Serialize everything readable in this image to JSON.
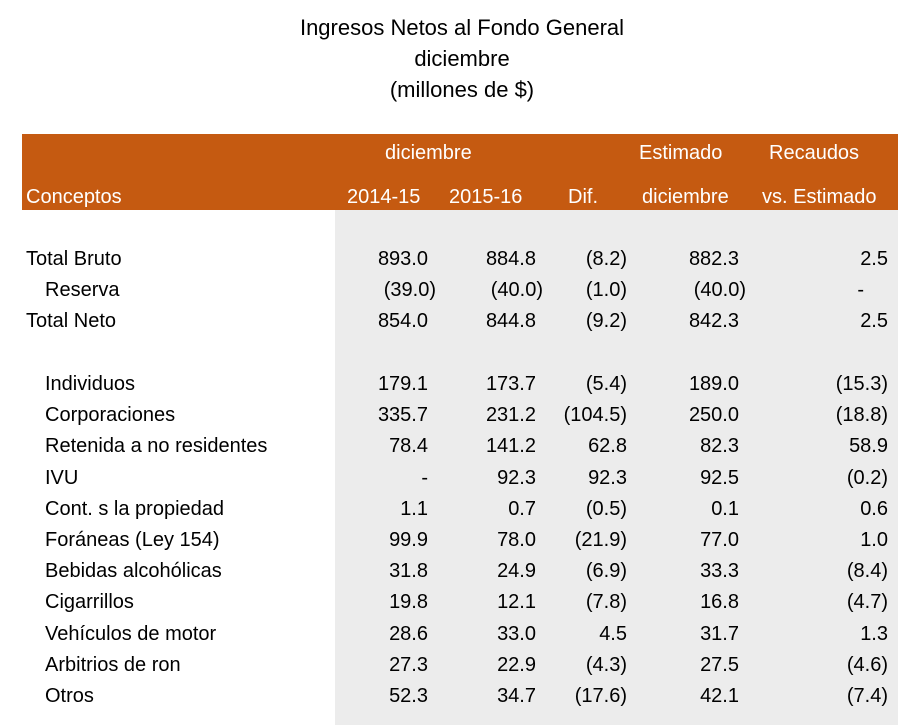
{
  "title": {
    "line1": "Ingresos Netos al Fondo General",
    "line2": "diciembre",
    "line3": "(millones de $)"
  },
  "header": {
    "group1": "diciembre",
    "estimado_top": "Estimado",
    "recaudos_top": "Recaudos",
    "conceptos": "Conceptos",
    "col_2014": "2014-15",
    "col_2015": "2015-16",
    "col_dif": "Dif.",
    "estimado_bottom": "diciembre",
    "recaudos_bottom": "vs. Estimado"
  },
  "summary_rows": [
    {
      "label": "Total Bruto",
      "v2014": "893.0",
      "v2015": "884.8",
      "dif": "(8.2)",
      "est": "882.3",
      "vs": "2.5"
    },
    {
      "label": "Reserva",
      "v2014": "(39.0)",
      "v2015": "(40.0)",
      "dif": "(1.0)",
      "est": "(40.0)",
      "vs": "-"
    },
    {
      "label": "Total Neto",
      "v2014": "854.0",
      "v2015": "844.8",
      "dif": "(9.2)",
      "est": "842.3",
      "vs": "2.5"
    }
  ],
  "detail_rows": [
    {
      "label": "Individuos",
      "v2014": "179.1",
      "v2015": "173.7",
      "dif": "(5.4)",
      "est": "189.0",
      "vs": "(15.3)"
    },
    {
      "label": "Corporaciones",
      "v2014": "335.7",
      "v2015": "231.2",
      "dif": "(104.5)",
      "est": "250.0",
      "vs": "(18.8)"
    },
    {
      "label": "Retenida a no residentes",
      "v2014": "78.4",
      "v2015": "141.2",
      "dif": "62.8",
      "est": "82.3",
      "vs": "58.9"
    },
    {
      "label": "IVU",
      "v2014": "-",
      "v2015": "92.3",
      "dif": "92.3",
      "est": "92.5",
      "vs": "(0.2)"
    },
    {
      "label": "Cont. s la propiedad",
      "v2014": "1.1",
      "v2015": "0.7",
      "dif": "(0.5)",
      "est": "0.1",
      "vs": "0.6"
    },
    {
      "label": "Foráneas (Ley 154)",
      "v2014": "99.9",
      "v2015": "78.0",
      "dif": "(21.9)",
      "est": "77.0",
      "vs": "1.0"
    },
    {
      "label": "Bebidas alcohólicas",
      "v2014": "31.8",
      "v2015": "24.9",
      "dif": "(6.9)",
      "est": "33.3",
      "vs": "(8.4)"
    },
    {
      "label": "Cigarrillos",
      "v2014": "19.8",
      "v2015": "12.1",
      "dif": "(7.8)",
      "est": "16.8",
      "vs": "(4.7)"
    },
    {
      "label": "Vehículos de motor",
      "v2014": "28.6",
      "v2015": "33.0",
      "dif": "4.5",
      "est": "31.7",
      "vs": "1.3"
    },
    {
      "label": "Arbitrios de ron",
      "v2014": "27.3",
      "v2015": "22.9",
      "dif": "(4.3)",
      "est": "27.5",
      "vs": "(4.6)"
    },
    {
      "label": "Otros",
      "v2014": "52.3",
      "v2015": "34.7",
      "dif": "(17.6)",
      "est": "42.1",
      "vs": "(7.4)"
    }
  ],
  "colors": {
    "header_band": "#c55a11",
    "header_text": "#ffffff",
    "data_column_shade": "#ececec"
  }
}
